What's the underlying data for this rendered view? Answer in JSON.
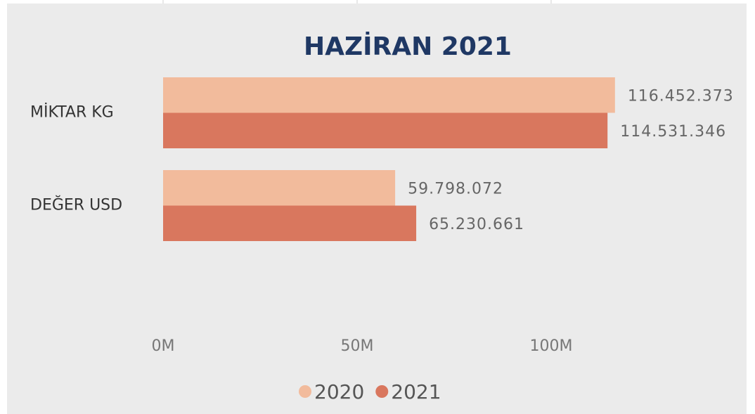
{
  "chart_data": {
    "type": "bar",
    "orientation": "horizontal",
    "title": "HAZİRAN 2021",
    "categories": [
      "MİKTAR KG",
      "DEĞER USD"
    ],
    "series": [
      {
        "name": "2020",
        "color": "#f2bb9c",
        "values": [
          116452373,
          59798072
        ],
        "value_labels": [
          "116.452.373",
          "59.798.072"
        ]
      },
      {
        "name": "2021",
        "color": "#d9775e",
        "values": [
          114531346,
          65230661
        ],
        "value_labels": [
          "114.531.346",
          "65.230.661"
        ]
      }
    ],
    "xlim": [
      0,
      150000000
    ],
    "xticks": [
      {
        "value": 0,
        "label": "0M"
      },
      {
        "value": 50000000,
        "label": "50M"
      },
      {
        "value": 100000000,
        "label": "100M"
      }
    ],
    "grid": true,
    "legend": "bottom"
  }
}
